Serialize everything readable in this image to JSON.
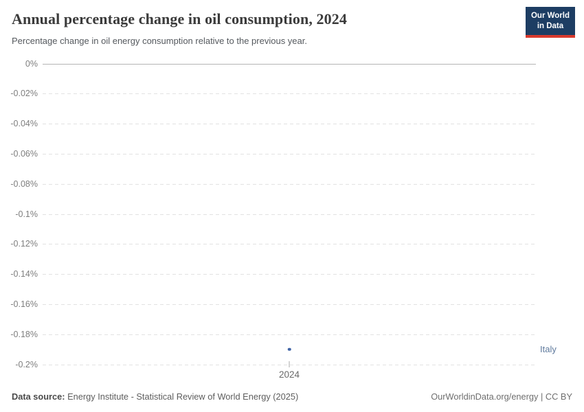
{
  "header": {
    "title": "Annual percentage change in oil consumption, 2024",
    "subtitle": "Percentage change in oil energy consumption relative to the previous year.",
    "logo": {
      "line1": "Our World",
      "line2": "in Data",
      "bg_color": "#1d3d63",
      "accent_color": "#d93a2d"
    }
  },
  "chart_data": {
    "type": "scatter",
    "title": "Annual percentage change in oil consumption, 2024",
    "subtitle": "Percentage change in oil energy consumption relative to the previous year.",
    "x": [
      2024
    ],
    "x_tick_label": "2024",
    "series": [
      {
        "name": "Italy",
        "year": 2024,
        "value_percent": -0.19,
        "color": "#3f63a5",
        "label_color": "#5f7a9d"
      }
    ],
    "ylim": [
      -0.2,
      0
    ],
    "yticks": [
      {
        "label": "0%",
        "value": 0
      },
      {
        "label": "-0.02%",
        "value": -0.02
      },
      {
        "label": "-0.04%",
        "value": -0.04
      },
      {
        "label": "-0.06%",
        "value": -0.06
      },
      {
        "label": "-0.08%",
        "value": -0.08
      },
      {
        "label": "-0.1%",
        "value": -0.1
      },
      {
        "label": "-0.12%",
        "value": -0.12
      },
      {
        "label": "-0.14%",
        "value": -0.14
      },
      {
        "label": "-0.16%",
        "value": -0.16
      },
      {
        "label": "-0.18%",
        "value": -0.18
      },
      {
        "label": "-0.2%",
        "value": -0.2
      }
    ],
    "grid": "horizontal-dashed",
    "legend_position": "right-inline-label"
  },
  "footer": {
    "source_label": "Data source:",
    "source_text": "Energy Institute - Statistical Review of World Energy (2025)",
    "right_text": "OurWorldinData.org/energy | CC BY"
  }
}
